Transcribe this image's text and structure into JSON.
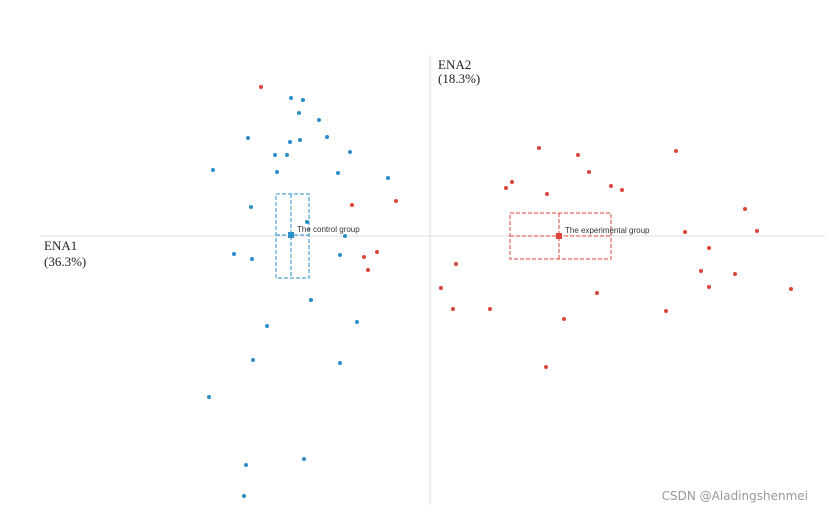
{
  "chart_data": {
    "type": "scatter",
    "x_label": [
      "ENA1",
      "(36.3%)"
    ],
    "y_label": [
      "ENA2",
      "(18.3%)"
    ],
    "xlim": [
      -3.9,
      3.95
    ],
    "ylim": [
      -2.69,
      1.81
    ],
    "series": [
      {
        "name": "The control group",
        "color": "#2a8fc8",
        "x": [
          -1.39,
          -1.27,
          -1.31,
          -1.11,
          -1.82,
          -1.4,
          -1.3,
          -1.03,
          -1.55,
          -1.43,
          -0.8,
          -2.17,
          -1.53,
          -0.92,
          -0.42,
          -1.79,
          -1.23,
          -0.85,
          -1.96,
          -1.78,
          -0.9,
          -1.19,
          -1.63,
          -0.73,
          -1.77,
          -0.9,
          -2.21,
          -1.26,
          -1.84,
          -1.86
        ],
        "y": [
          1.38,
          1.36,
          1.23,
          1.16,
          0.98,
          0.94,
          0.96,
          0.99,
          0.81,
          0.81,
          0.84,
          0.66,
          0.64,
          0.63,
          0.58,
          0.29,
          0.14,
          0,
          -0.18,
          -0.23,
          -0.19,
          -0.64,
          -0.9,
          -0.86,
          -1.24,
          -1.27,
          -1.61,
          -2.23,
          -2.29,
          -2.6
        ],
        "mean_x": -1.39,
        "mean_y": 0.01,
        "ci_x": [
          -1.54,
          -1.21
        ],
        "ci_y": [
          -0.42,
          0.42
        ]
      },
      {
        "name": "The experimental group",
        "color": "#d9473a",
        "x": [
          -1.69,
          -0.34,
          -0.78,
          -0.53,
          -0.66,
          -0.62,
          1.09,
          1.48,
          2.46,
          1.59,
          0.82,
          0.76,
          1.17,
          1.81,
          1.92,
          3.15,
          3.27,
          2.55,
          2.79,
          0.26,
          2.71,
          3.05,
          0.11,
          2.79,
          1.67,
          3.61,
          0.23,
          0.6,
          2.36,
          1.34,
          1.16
        ],
        "y": [
          1.49,
          0.35,
          0.31,
          -0.16,
          -0.21,
          -0.34,
          0.88,
          0.81,
          0.85,
          0.64,
          0.54,
          0.48,
          0.42,
          0.5,
          0.46,
          0.27,
          0.05,
          0.04,
          -0.12,
          -0.28,
          -0.35,
          -0.38,
          -0.52,
          -0.51,
          -0.57,
          -0.53,
          -0.73,
          -0.73,
          -0.75,
          -0.83,
          -1.31
        ],
        "mean_x": 1.29,
        "mean_y": 0,
        "ci_x": [
          0.8,
          1.81
        ],
        "ci_y": [
          -0.23,
          0.23
        ]
      }
    ]
  },
  "watermark": "CSDN @Aladingshenmei"
}
